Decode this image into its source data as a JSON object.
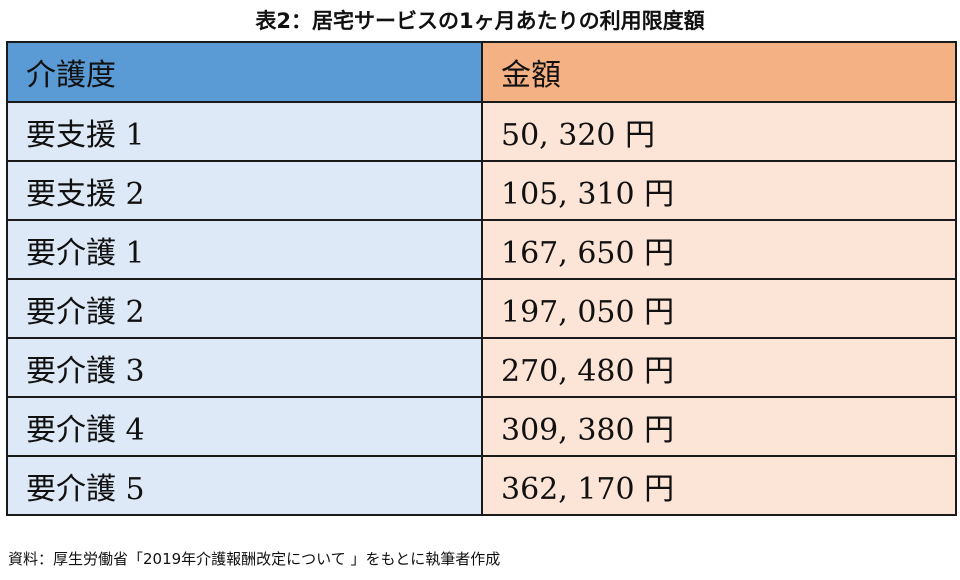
{
  "title": "表2：居宅サービスの1ヶ月あたりの利用限度額",
  "table": {
    "headers": {
      "level": "介護度",
      "amount": "金額"
    },
    "rows": [
      {
        "level": "要支援 1",
        "amount": "50, 320 円"
      },
      {
        "level": "要支援 2",
        "amount": "105, 310 円"
      },
      {
        "level": "要介護 1",
        "amount": "167, 650 円"
      },
      {
        "level": "要介護 2",
        "amount": "197, 050 円"
      },
      {
        "level": "要介護 3",
        "amount": "270, 480 円"
      },
      {
        "level": "要介護 4",
        "amount": "309, 380 円"
      },
      {
        "level": "要介護 5",
        "amount": "362, 170 円"
      }
    ],
    "colors": {
      "header_level": "#5b9bd5",
      "header_amount": "#f4b183",
      "body_level": "#dde9f6",
      "body_amount": "#fce4d6"
    }
  },
  "source": "資料：厚生労働省「2019年介護報酬改定について 」をもとに執筆者作成"
}
